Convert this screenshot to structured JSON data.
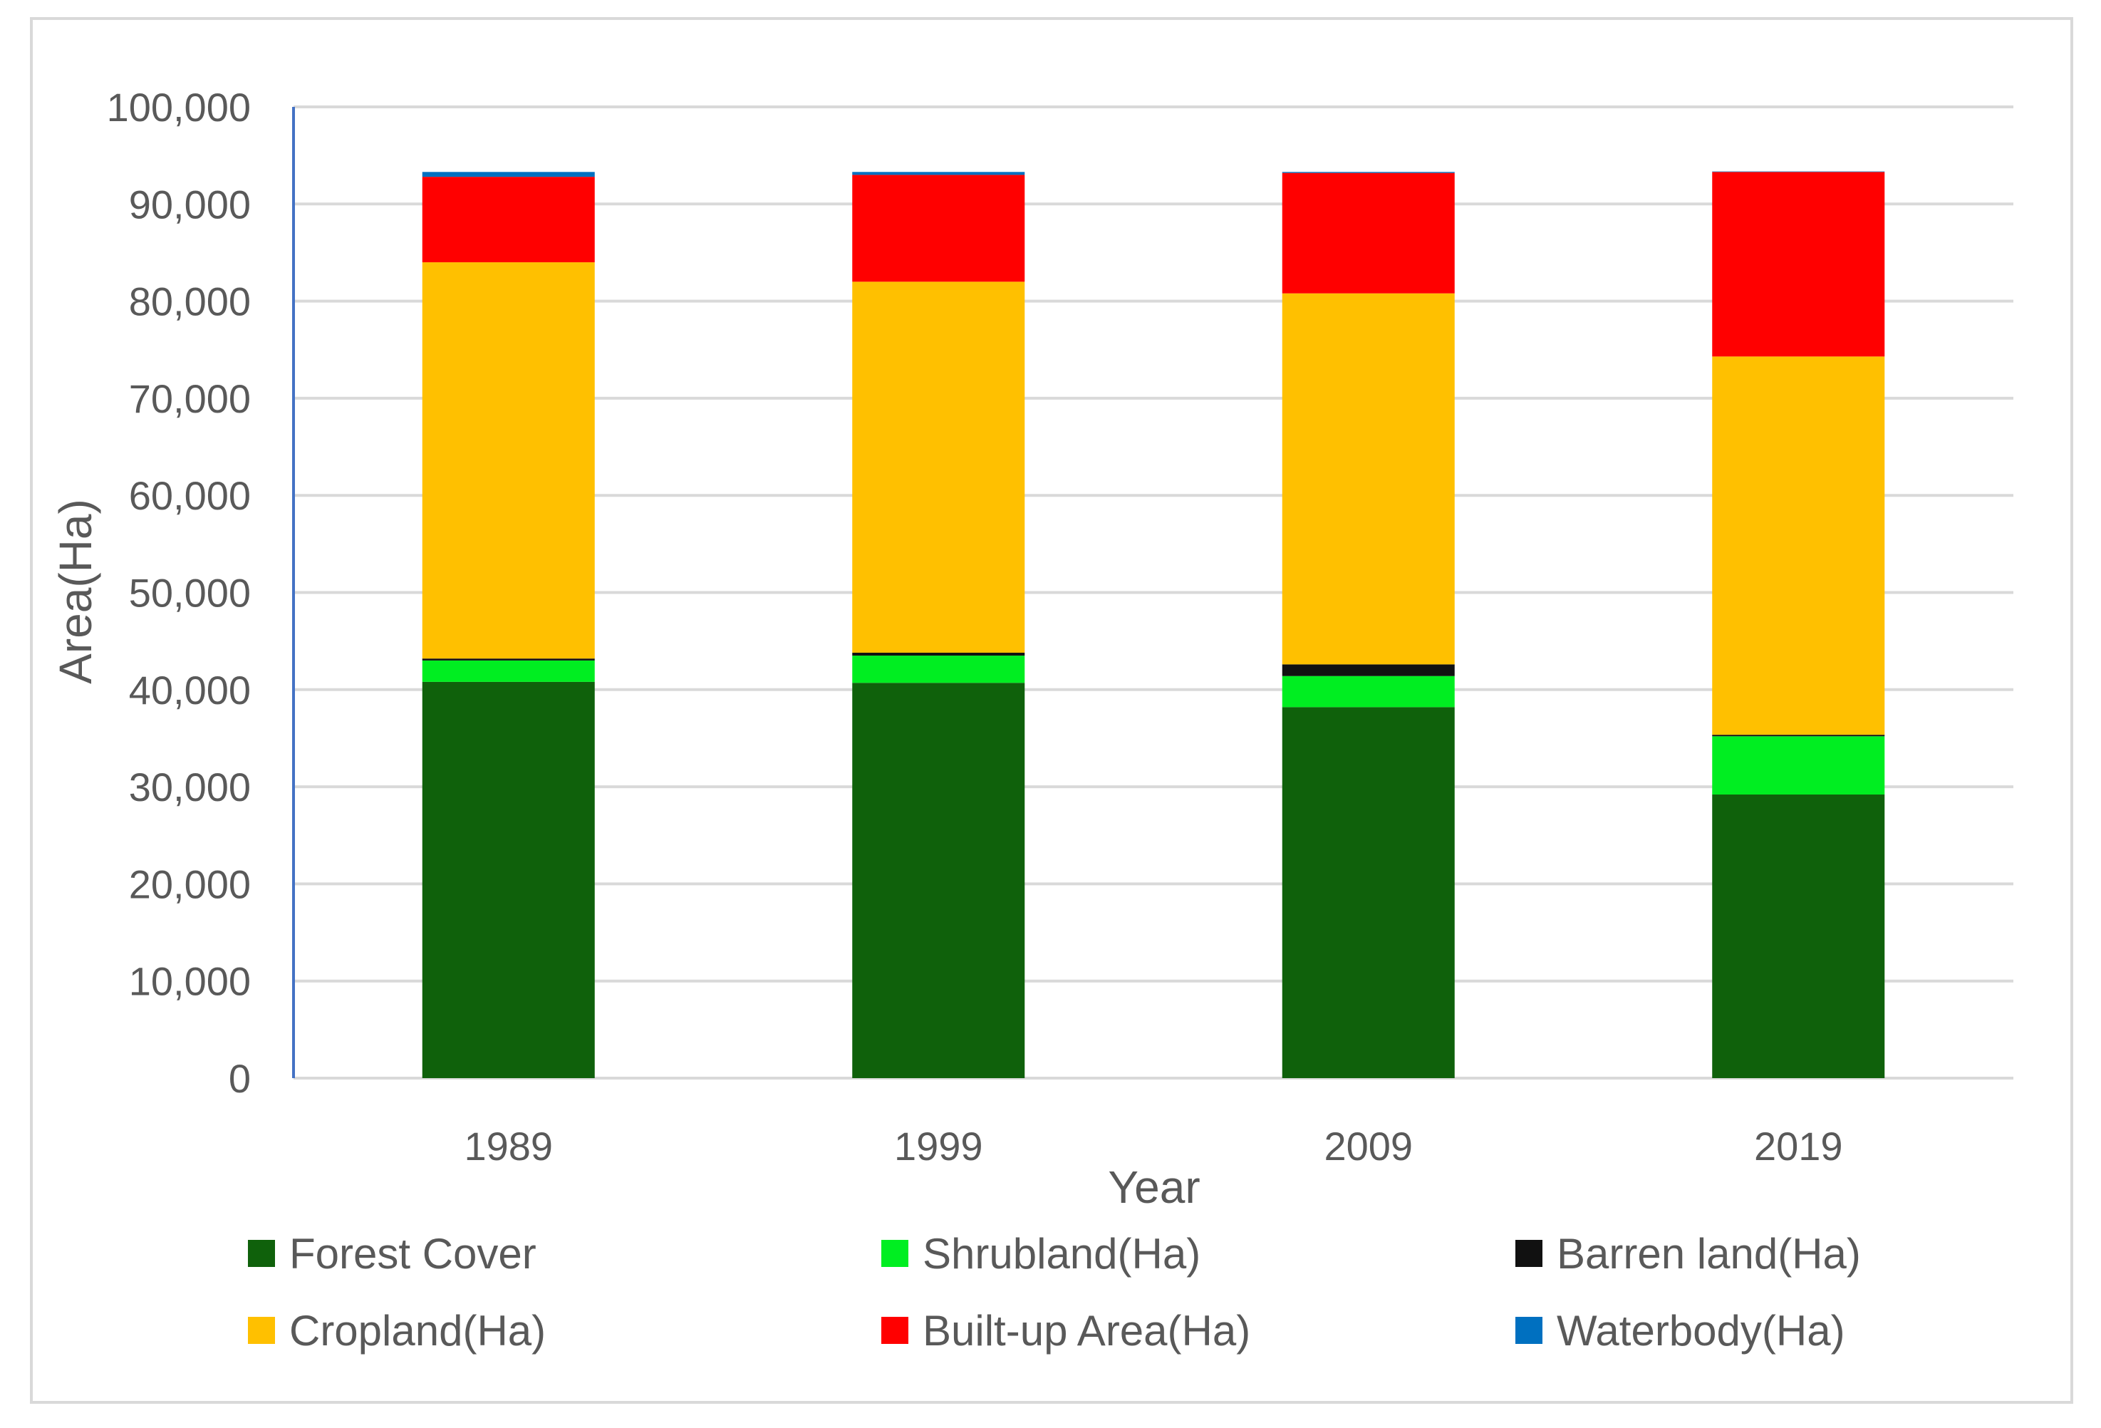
{
  "chart_data": {
    "type": "bar",
    "stacked": true,
    "title": "",
    "xlabel": "Year",
    "ylabel": "Area(Ha)",
    "ylim": [
      0,
      100000
    ],
    "yticks": [
      "0",
      "10,000",
      "20,000",
      "30,000",
      "40,000",
      "50,000",
      "60,000",
      "70,000",
      "80,000",
      "90,000",
      "100,000"
    ],
    "categories": [
      "1989",
      "1999",
      "2009",
      "2019"
    ],
    "series": [
      {
        "name": "Forest Cover",
        "color": "#0f610b",
        "values": [
          40800,
          40700,
          38200,
          29200
        ]
      },
      {
        "name": "Shrubland(Ha)",
        "color": "#00ee21",
        "values": [
          2200,
          2800,
          3200,
          6000
        ]
      },
      {
        "name": "Barren land(Ha)",
        "color": "#111111",
        "values": [
          200,
          300,
          1200,
          150
        ]
      },
      {
        "name": "Cropland(Ha)",
        "color": "#ffc000",
        "values": [
          40800,
          38200,
          38200,
          38950
        ]
      },
      {
        "name": "Built-up Area(Ha)",
        "color": "#ff0000",
        "values": [
          8800,
          11000,
          12400,
          19000
        ]
      },
      {
        "name": "Waterbody(Ha)",
        "color": "#0070c0",
        "values": [
          500,
          300,
          100,
          50
        ]
      }
    ],
    "legend_position": "bottom",
    "grid": true
  }
}
